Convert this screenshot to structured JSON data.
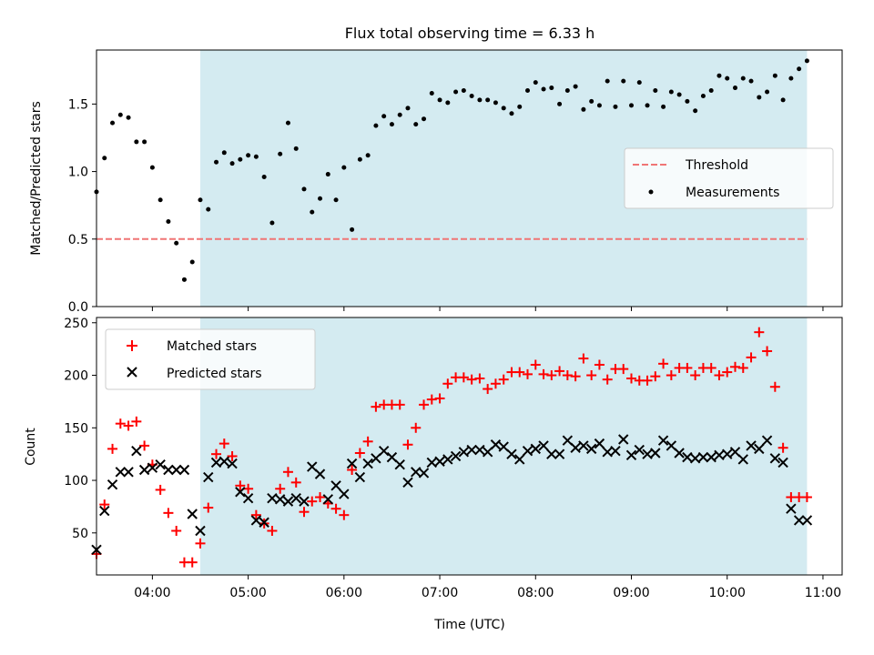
{
  "figure_title": "Flux total observing time = 6.33 h",
  "colors": {
    "shade": "#d4ebf1",
    "threshold": "#f07575",
    "measurements": "#000000",
    "matched": "#ff0000",
    "predicted": "#000000"
  },
  "chart_data": [
    {
      "type": "scatter",
      "name": "ratio-panel",
      "title": "Flux total observing time = 6.33 h",
      "xlabel": "",
      "ylabel": "Matched/Predicted stars",
      "xlim": [
        "03:25",
        "11:12"
      ],
      "ylim": [
        0,
        1.9
      ],
      "yticks": [
        0.0,
        0.5,
        1.0,
        1.5
      ],
      "ytick_labels": [
        "0.0",
        "0.5",
        "1.0",
        "1.5"
      ],
      "shaded_span": [
        "04:30",
        "10:50"
      ],
      "grid": false,
      "legend": "center-right",
      "threshold": {
        "label": "Threshold",
        "value": 0.5,
        "x": [
          "03:25",
          "10:50"
        ]
      },
      "series": [
        {
          "name": "Measurements",
          "x": [
            "03:25",
            "03:30",
            "03:35",
            "03:40",
            "03:45",
            "03:50",
            "03:55",
            "04:00",
            "04:05",
            "04:10",
            "04:15",
            "04:20",
            "04:25",
            "04:30",
            "04:35",
            "04:40",
            "04:45",
            "04:50",
            "04:55",
            "05:00",
            "05:05",
            "05:10",
            "05:15",
            "05:20",
            "05:25",
            "05:30",
            "05:35",
            "05:40",
            "05:45",
            "05:50",
            "05:55",
            "06:00",
            "06:05",
            "06:10",
            "06:15",
            "06:20",
            "06:25",
            "06:30",
            "06:35",
            "06:40",
            "06:45",
            "06:50",
            "06:55",
            "07:00",
            "07:05",
            "07:10",
            "07:15",
            "07:20",
            "07:25",
            "07:30",
            "07:35",
            "07:40",
            "07:45",
            "07:50",
            "07:55",
            "08:00",
            "08:05",
            "08:10",
            "08:15",
            "08:20",
            "08:25",
            "08:30",
            "08:35",
            "08:40",
            "08:45",
            "08:50",
            "08:55",
            "09:00",
            "09:05",
            "09:10",
            "09:15",
            "09:20",
            "09:25",
            "09:30",
            "09:35",
            "09:40",
            "09:45",
            "09:50",
            "09:55",
            "10:00",
            "10:05",
            "10:10",
            "10:15",
            "10:20",
            "10:25",
            "10:30",
            "10:35",
            "10:40",
            "10:45",
            "10:50"
          ],
          "y": [
            0.85,
            1.1,
            1.36,
            1.42,
            1.4,
            1.22,
            1.22,
            1.03,
            0.79,
            0.63,
            0.47,
            0.2,
            0.33,
            0.79,
            0.72,
            1.07,
            1.14,
            1.06,
            1.09,
            1.12,
            1.11,
            0.96,
            0.62,
            1.13,
            1.36,
            1.17,
            0.87,
            0.7,
            0.8,
            0.98,
            0.79,
            1.03,
            0.57,
            1.09,
            1.12,
            1.34,
            1.41,
            1.35,
            1.42,
            1.47,
            1.35,
            1.39,
            1.58,
            1.53,
            1.51,
            1.59,
            1.6,
            1.56,
            1.53,
            1.53,
            1.51,
            1.47,
            1.43,
            1.48,
            1.6,
            1.66,
            1.61,
            1.62,
            1.5,
            1.6,
            1.63,
            1.46,
            1.52,
            1.49,
            1.67,
            1.48,
            1.67,
            1.49,
            1.66,
            1.49,
            1.6,
            1.48,
            1.59,
            1.57,
            1.52,
            1.45,
            1.56,
            1.6,
            1.71,
            1.69,
            1.62,
            1.69,
            1.67,
            1.55,
            1.59,
            1.71,
            1.53,
            1.69,
            1.76,
            1.82
          ]
        }
      ]
    },
    {
      "type": "scatter",
      "name": "count-panel",
      "title": "",
      "xlabel": "Time (UTC)",
      "ylabel": "Count",
      "xlim": [
        "03:25",
        "11:12"
      ],
      "ylim": [
        10,
        255
      ],
      "yticks": [
        50,
        100,
        150,
        200,
        250
      ],
      "ytick_labels": [
        "50",
        "100",
        "150",
        "200",
        "250"
      ],
      "xticks": [
        "04:00",
        "05:00",
        "06:00",
        "07:00",
        "08:00",
        "09:00",
        "10:00",
        "11:00"
      ],
      "shaded_span": [
        "04:30",
        "10:50"
      ],
      "grid": false,
      "legend": "top-left",
      "series": [
        {
          "name": "Matched stars",
          "marker": "plus",
          "x": [
            "03:25",
            "03:30",
            "03:35",
            "03:40",
            "03:45",
            "03:50",
            "03:55",
            "04:00",
            "04:05",
            "04:10",
            "04:15",
            "04:20",
            "04:25",
            "04:30",
            "04:35",
            "04:40",
            "04:45",
            "04:50",
            "04:55",
            "05:00",
            "05:05",
            "05:10",
            "05:15",
            "05:20",
            "05:25",
            "05:30",
            "05:35",
            "05:40",
            "05:45",
            "05:50",
            "05:55",
            "06:00",
            "06:05",
            "06:10",
            "06:15",
            "06:20",
            "06:25",
            "06:30",
            "06:35",
            "06:40",
            "06:45",
            "06:50",
            "06:55",
            "07:00",
            "07:05",
            "07:10",
            "07:15",
            "07:20",
            "07:25",
            "07:30",
            "07:35",
            "07:40",
            "07:45",
            "07:50",
            "07:55",
            "08:00",
            "08:05",
            "08:10",
            "08:15",
            "08:20",
            "08:25",
            "08:30",
            "08:35",
            "08:40",
            "08:45",
            "08:50",
            "08:55",
            "09:00",
            "09:05",
            "09:10",
            "09:15",
            "09:20",
            "09:25",
            "09:30",
            "09:35",
            "09:40",
            "09:45",
            "09:50",
            "09:55",
            "10:00",
            "10:05",
            "10:10",
            "10:15",
            "10:20",
            "10:25",
            "10:30",
            "10:35",
            "10:40",
            "10:45",
            "10:50"
          ],
          "y": [
            30,
            77,
            130,
            154,
            152,
            156,
            133,
            115,
            91,
            69,
            52,
            22,
            22,
            40,
            74,
            125,
            135,
            123,
            95,
            92,
            67,
            59,
            52,
            92,
            108,
            98,
            70,
            80,
            84,
            78,
            73,
            67,
            110,
            126,
            137,
            170,
            172,
            172,
            172,
            134,
            150,
            172,
            177,
            178,
            192,
            198,
            198,
            196,
            197,
            187,
            192,
            196,
            203,
            203,
            201,
            210,
            201,
            200,
            204,
            200,
            199,
            216,
            200,
            210,
            196,
            206,
            206,
            197,
            195,
            195,
            199,
            211,
            200,
            207,
            207,
            200,
            207,
            207,
            200,
            203,
            208,
            207,
            217,
            241,
            223,
            189,
            131,
            84,
            84,
            84
          ]
        },
        {
          "name": "Predicted stars",
          "marker": "x",
          "x": [
            "03:25",
            "03:30",
            "03:35",
            "03:40",
            "03:45",
            "03:50",
            "03:55",
            "04:00",
            "04:05",
            "04:10",
            "04:15",
            "04:20",
            "04:25",
            "04:30",
            "04:35",
            "04:40",
            "04:45",
            "04:50",
            "04:55",
            "05:00",
            "05:05",
            "05:10",
            "05:15",
            "05:20",
            "05:25",
            "05:30",
            "05:35",
            "05:40",
            "05:45",
            "05:50",
            "05:55",
            "06:00",
            "06:05",
            "06:10",
            "06:15",
            "06:20",
            "06:25",
            "06:30",
            "06:35",
            "06:40",
            "06:45",
            "06:50",
            "06:55",
            "07:00",
            "07:05",
            "07:10",
            "07:15",
            "07:20",
            "07:25",
            "07:30",
            "07:35",
            "07:40",
            "07:45",
            "07:50",
            "07:55",
            "08:00",
            "08:05",
            "08:10",
            "08:15",
            "08:20",
            "08:25",
            "08:30",
            "08:35",
            "08:40",
            "08:45",
            "08:50",
            "08:55",
            "09:00",
            "09:05",
            "09:10",
            "09:15",
            "09:20",
            "09:25",
            "09:30",
            "09:35",
            "09:40",
            "09:45",
            "09:50",
            "09:55",
            "10:00",
            "10:05",
            "10:10",
            "10:15",
            "10:20",
            "10:25",
            "10:30",
            "10:35",
            "10:40",
            "10:45",
            "10:50"
          ],
          "y": [
            34,
            71,
            96,
            108,
            108,
            128,
            110,
            112,
            115,
            110,
            110,
            110,
            68,
            52,
            103,
            117,
            118,
            116,
            89,
            83,
            62,
            60,
            83,
            82,
            80,
            83,
            80,
            113,
            106,
            82,
            95,
            87,
            116,
            103,
            116,
            121,
            128,
            122,
            115,
            98,
            108,
            107,
            117,
            118,
            120,
            123,
            127,
            129,
            129,
            127,
            134,
            132,
            125,
            120,
            128,
            130,
            133,
            125,
            125,
            138,
            131,
            133,
            130,
            135,
            127,
            128,
            139,
            124,
            129,
            125,
            126,
            138,
            133,
            126,
            122,
            121,
            122,
            122,
            124,
            125,
            127,
            120,
            133,
            130,
            138,
            121,
            117,
            73,
            62,
            62
          ]
        }
      ]
    }
  ],
  "legend_top": [
    {
      "label": "Threshold"
    },
    {
      "label": "Measurements"
    }
  ],
  "legend_bottom": [
    {
      "label": "Matched stars"
    },
    {
      "label": "Predicted stars"
    }
  ]
}
